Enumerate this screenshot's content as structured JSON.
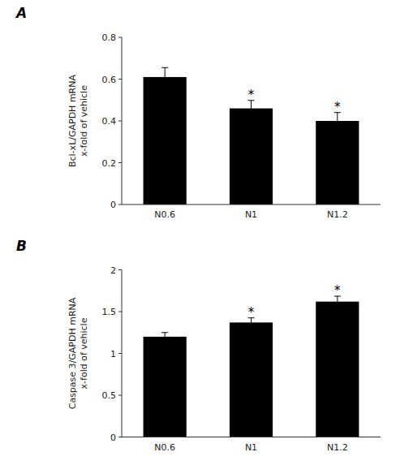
{
  "chart_data": [
    {
      "type": "bar",
      "title": "A",
      "categories": [
        "N0.6",
        "N1",
        "N1.2"
      ],
      "values": [
        0.61,
        0.46,
        0.4
      ],
      "errors": [
        0.045,
        0.038,
        0.04
      ],
      "color": "#000000",
      "y_label": "Bcl-xL/GAPDH  mRNA\nx-fold of vehicle",
      "ylim": [
        0,
        0.8
      ],
      "yticks": [
        0,
        0.2,
        0.4,
        0.6,
        0.8
      ],
      "annotations": [
        {
          "text": "*",
          "x": "N1"
        },
        {
          "text": "*",
          "x": "N1.2"
        }
      ],
      "grid": false
    },
    {
      "type": "bar",
      "title": "B",
      "categories": [
        "N0.6",
        "N1",
        "N1.2"
      ],
      "values": [
        1.2,
        1.37,
        1.62
      ],
      "errors": [
        0.05,
        0.055,
        0.065
      ],
      "color": "#000000",
      "y_label": "Caspase 3/GAPDH  mRNA\nx-fold of vehicle",
      "ylim": [
        0,
        2
      ],
      "yticks": [
        0,
        0.5,
        1,
        1.5,
        2
      ],
      "annotations": [
        {
          "text": "*",
          "x": "N1"
        },
        {
          "text": "*",
          "x": "N1.2"
        }
      ],
      "grid": false
    }
  ]
}
